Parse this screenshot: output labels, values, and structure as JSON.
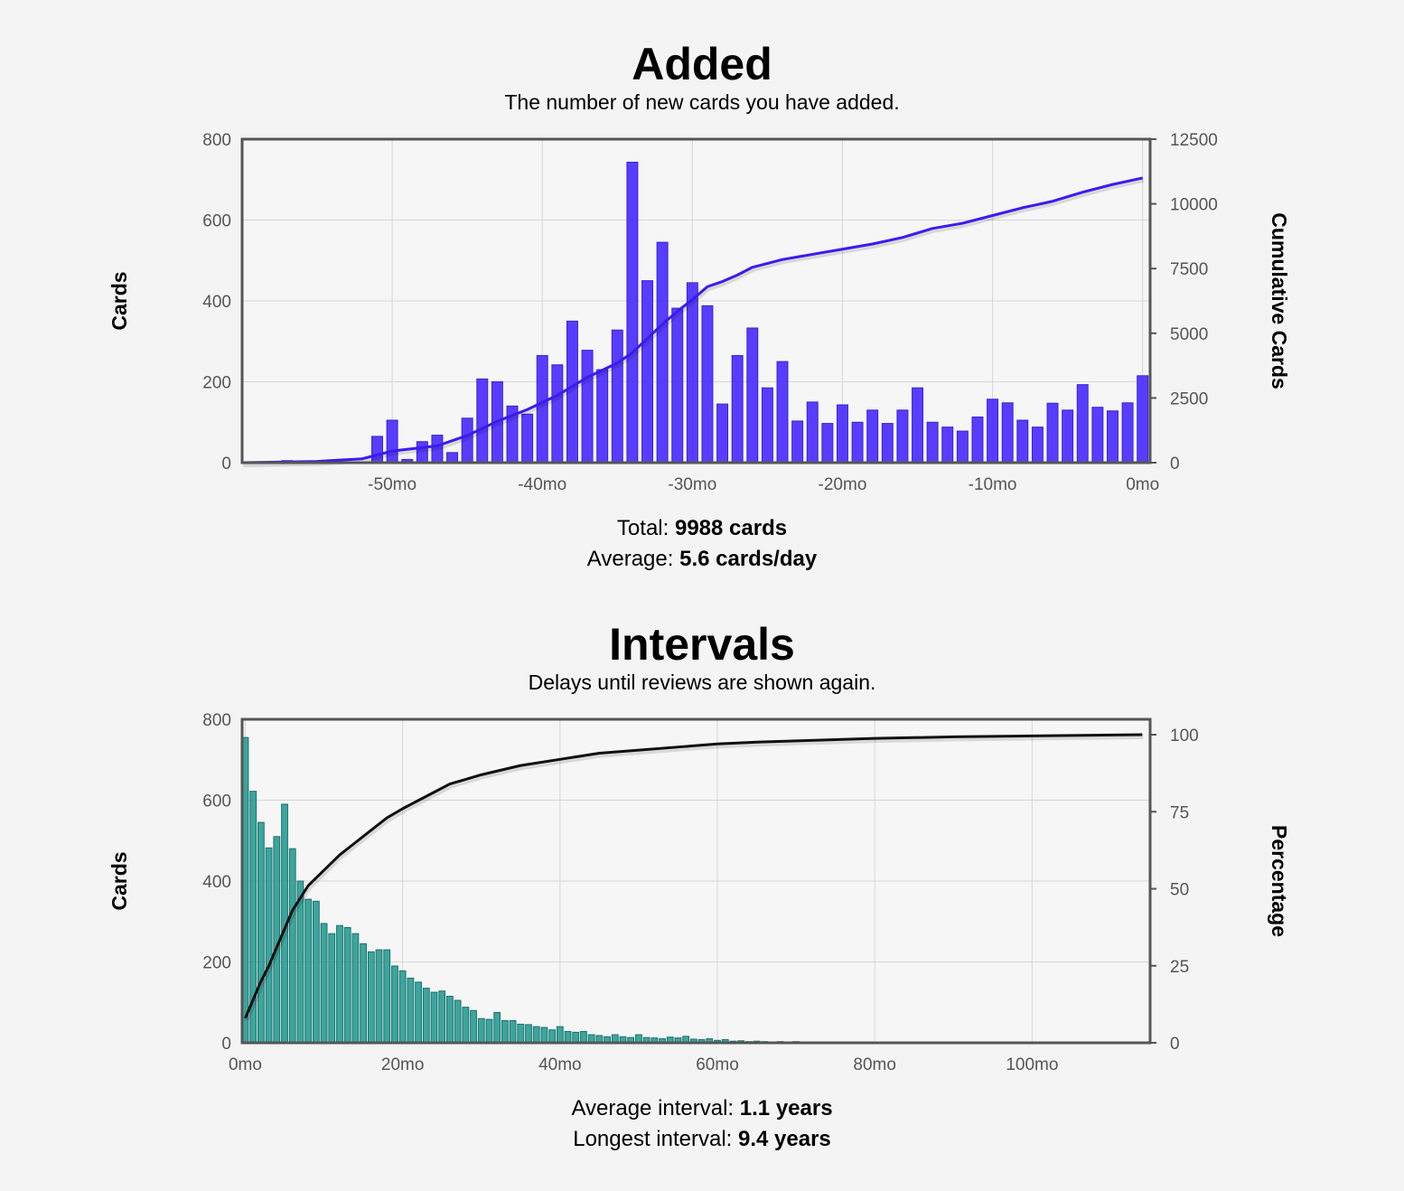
{
  "added": {
    "title": "Added",
    "subtitle": "The number of new cards you have added.",
    "stats": [
      {
        "label": "Total:",
        "value": "9988 cards"
      },
      {
        "label": "Average:",
        "value": "5.6 cards/day"
      }
    ],
    "colors": {
      "bars": "#4a2dff",
      "line": "#3b1bf0"
    }
  },
  "intervals": {
    "title": "Intervals",
    "subtitle": "Delays until reviews are shown again.",
    "stats": [
      {
        "label": "Average interval:",
        "value": "1.1 years"
      },
      {
        "label": "Longest interval:",
        "value": "9.4 years"
      }
    ],
    "colors": {
      "bars": "#2a9e96",
      "line": "#111111"
    }
  },
  "chart_data": [
    {
      "type": "bar",
      "ylabel": "Cards",
      "y2label": "Cumulative Cards",
      "xlim": [
        -60,
        0.5
      ],
      "ylim": [
        0,
        800
      ],
      "y2lim": [
        0,
        12500
      ],
      "xticks": [
        {
          "v": -50,
          "label": "-50mo"
        },
        {
          "v": -40,
          "label": "-40mo"
        },
        {
          "v": -30,
          "label": "-30mo"
        },
        {
          "v": -20,
          "label": "-20mo"
        },
        {
          "v": -10,
          "label": "-10mo"
        },
        {
          "v": 0,
          "label": "0mo"
        }
      ],
      "yticks": [
        0,
        200,
        400,
        600,
        800
      ],
      "y2ticks": [
        0,
        2500,
        5000,
        7500,
        10000,
        12500
      ],
      "grid": true,
      "series": [
        {
          "kind": "bars",
          "x": [
            -57,
            -51,
            -50,
            -49,
            -48,
            -47,
            -46,
            -45,
            -44,
            -43,
            -42,
            -41,
            -40,
            -39,
            -38,
            -37,
            -36,
            -35,
            -34,
            -33,
            -32,
            -31,
            -30,
            -29,
            -28,
            -27,
            -26,
            -25,
            -24,
            -23,
            -22,
            -21,
            -20,
            -19,
            -18,
            -17,
            -16,
            -15,
            -14,
            -13,
            -12,
            -11,
            -10,
            -9,
            -8,
            -7,
            -6,
            -5,
            -4,
            -3,
            -2,
            -1,
            0
          ],
          "values": [
            5,
            65,
            105,
            8,
            52,
            68,
            25,
            110,
            207,
            200,
            140,
            120,
            265,
            242,
            350,
            278,
            230,
            328,
            743,
            450,
            545,
            382,
            445,
            388,
            145,
            265,
            333,
            185,
            250,
            103,
            150,
            97,
            143,
            100,
            130,
            97,
            130,
            185,
            100,
            88,
            78,
            113,
            157,
            148,
            105,
            88,
            147,
            130,
            193,
            137,
            128,
            148,
            215
          ]
        },
        {
          "kind": "line",
          "axis": "right",
          "x": [
            -60,
            -55,
            -52,
            -50,
            -47,
            -45,
            -43,
            -41,
            -39,
            -37,
            -35,
            -34,
            -33,
            -32,
            -31,
            -30,
            -29,
            -28,
            -27,
            -26,
            -24,
            -22,
            -20,
            -18,
            -16,
            -14,
            -12,
            -10,
            -8,
            -6,
            -4,
            -2,
            0
          ],
          "values": [
            0,
            50,
            150,
            450,
            650,
            1050,
            1600,
            2050,
            2600,
            3300,
            3850,
            4250,
            4800,
            5350,
            5850,
            6300,
            6800,
            7000,
            7250,
            7550,
            7850,
            8050,
            8250,
            8450,
            8700,
            9050,
            9250,
            9550,
            9850,
            10100,
            10450,
            10750,
            11000
          ]
        }
      ]
    },
    {
      "type": "bar",
      "ylabel": "Cards",
      "y2label": "Percentage",
      "xlim": [
        -0.4,
        115
      ],
      "ylim": [
        0,
        800
      ],
      "y2lim": [
        0,
        105
      ],
      "xticks": [
        {
          "v": 0,
          "label": "0mo"
        },
        {
          "v": 20,
          "label": "20mo"
        },
        {
          "v": 40,
          "label": "40mo"
        },
        {
          "v": 60,
          "label": "60mo"
        },
        {
          "v": 80,
          "label": "80mo"
        },
        {
          "v": 100,
          "label": "100mo"
        }
      ],
      "yticks": [
        0,
        200,
        400,
        600,
        800
      ],
      "y2ticks": [
        0,
        25,
        50,
        75,
        100
      ],
      "grid": true,
      "series": [
        {
          "kind": "bars",
          "x_start": 0,
          "x_step": 1,
          "values": [
            755,
            622,
            545,
            482,
            510,
            590,
            480,
            400,
            355,
            350,
            295,
            270,
            290,
            285,
            270,
            245,
            225,
            230,
            230,
            190,
            178,
            160,
            150,
            135,
            125,
            128,
            115,
            105,
            88,
            80,
            60,
            58,
            75,
            55,
            55,
            46,
            45,
            40,
            38,
            32,
            40,
            28,
            26,
            28,
            20,
            18,
            15,
            20,
            15,
            13,
            20,
            13,
            12,
            10,
            14,
            12,
            16,
            9,
            8,
            10,
            6,
            8,
            4,
            5,
            3,
            4,
            3,
            2,
            3,
            2,
            3,
            2,
            2,
            2,
            2,
            2,
            1,
            1,
            2,
            1,
            1,
            1,
            1,
            1,
            1,
            1,
            1,
            1,
            1,
            1,
            1,
            1,
            1,
            1,
            1,
            1,
            1,
            1,
            1,
            1,
            1,
            1,
            1,
            1,
            1,
            1,
            1,
            1,
            1,
            1,
            1,
            1,
            1,
            1,
            1
          ]
        },
        {
          "kind": "line",
          "axis": "right",
          "x": [
            0,
            1,
            2,
            3,
            4,
            5,
            6,
            7,
            8,
            10,
            12,
            14,
            16,
            18,
            20,
            23,
            26,
            30,
            35,
            40,
            45,
            50,
            55,
            60,
            65,
            70,
            80,
            90,
            100,
            114
          ],
          "values": [
            8,
            14,
            20,
            25,
            31,
            37,
            43,
            47,
            51,
            56,
            61,
            65,
            69,
            73,
            76,
            80,
            84,
            87,
            90,
            92,
            94,
            95,
            96,
            97,
            97.6,
            98,
            98.8,
            99.3,
            99.6,
            100
          ]
        }
      ]
    }
  ]
}
